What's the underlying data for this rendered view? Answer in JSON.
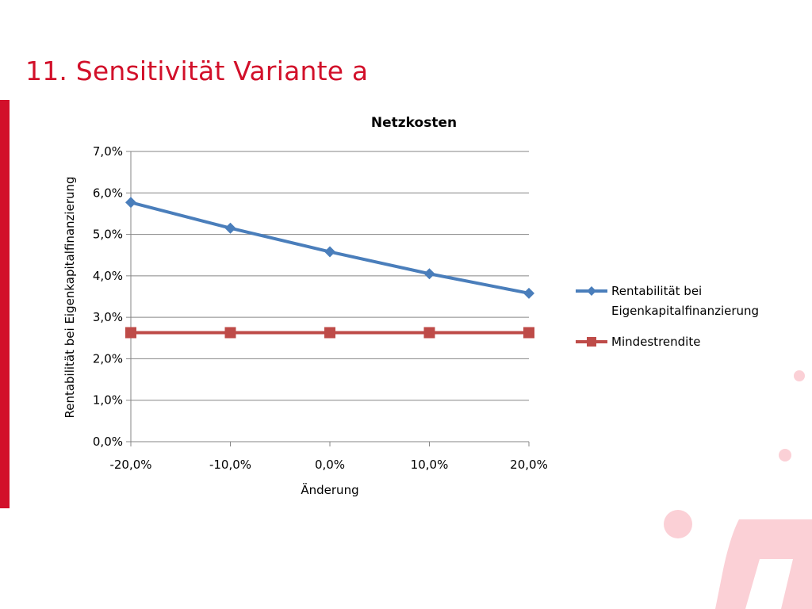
{
  "slide": {
    "title": "11. Sensitivität Variante a",
    "accent_color": "#d2102a",
    "decoration_color": "#fbd0d6"
  },
  "chart_data": {
    "type": "line",
    "title": "Netzkosten",
    "xlabel": "Änderung",
    "ylabel": "Rentabilität bei Eigenkapitalfinanzierung",
    "categories": [
      "-20,0%",
      "-10,0%",
      "0,0%",
      "10,0%",
      "20,0%"
    ],
    "ylim": [
      0,
      7
    ],
    "yticks": [
      "0,0%",
      "1,0%",
      "2,0%",
      "3,0%",
      "4,0%",
      "5,0%",
      "6,0%",
      "7,0%"
    ],
    "grid": true,
    "legend_position": "right",
    "series": [
      {
        "name": "Rentabilität bei Eigenkapitalfinanzierung",
        "legend_lines": [
          "Rentabilität bei",
          "Eigenkapitalfinanzierung"
        ],
        "marker": "diamond",
        "color": "#4a7ebb",
        "values": [
          5.77,
          5.15,
          4.58,
          4.05,
          3.58
        ]
      },
      {
        "name": "Mindestrendite",
        "legend_lines": [
          "Mindestrendite"
        ],
        "marker": "square",
        "color": "#be4b48",
        "values": [
          2.63,
          2.63,
          2.63,
          2.63,
          2.63
        ]
      }
    ]
  }
}
